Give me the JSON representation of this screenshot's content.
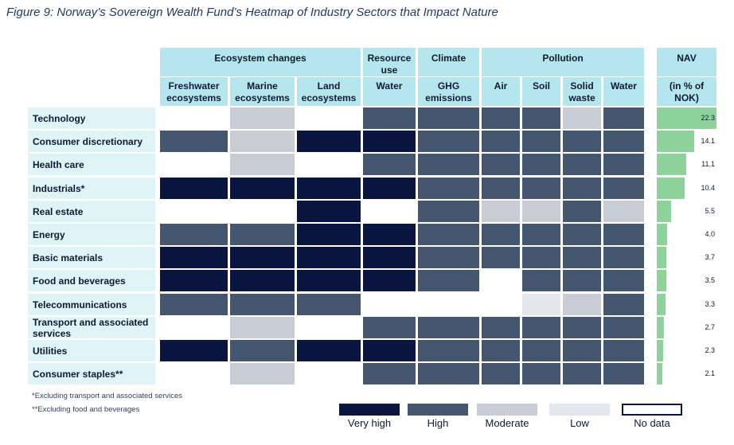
{
  "caption": "Figure 9: Norway’s Sovereign Wealth Fund’s Heatmap of Industry Sectors that Impact Nature",
  "headers": {
    "groups": {
      "ecosystem": "Ecosystem changes",
      "resource": "Resource use",
      "climate": "Climate",
      "pollution": "Pollution",
      "nav": "NAV"
    },
    "columns": {
      "freshwater": "Freshwater ecosystems",
      "marine": "Marine ecosystems",
      "land": "Land ecosystems",
      "water_use": "Water",
      "ghg": "GHG emissions",
      "air": "Air",
      "soil": "Soil",
      "solid_waste": "Solid waste",
      "water_pollution": "Water",
      "nav_unit": "(in % of NOK)"
    }
  },
  "colors": {
    "very_high": "#0b1640",
    "high": "#44576f",
    "moderate": "#c8ccd4",
    "low": "#e3e6ea",
    "no_data": "#ffffff",
    "nav_bar": "#8ed39c"
  },
  "chart_data": {
    "type": "heatmap",
    "title": "Figure 9: Norway’s Sovereign Wealth Fund’s Heatmap of Industry Sectors that Impact Nature",
    "columns": [
      "Freshwater ecosystems",
      "Marine ecosystems",
      "Land ecosystems",
      "Water (Resource use)",
      "GHG emissions",
      "Air",
      "Soil",
      "Solid waste",
      "Water (Pollution)"
    ],
    "levels": [
      "Very high",
      "High",
      "Moderate",
      "Low",
      "No data"
    ],
    "sectors": [
      {
        "name": "Technology",
        "nav": "22.3",
        "nav_value": 22.3,
        "ratings": [
          "No data",
          "Moderate",
          "No data",
          "High",
          "High",
          "High",
          "High",
          "Moderate",
          "High"
        ]
      },
      {
        "name": "Consumer discretionary",
        "nav": "14.1",
        "nav_value": 14.1,
        "ratings": [
          "High",
          "Moderate",
          "Very high",
          "Very high",
          "High",
          "High",
          "High",
          "High",
          "High"
        ]
      },
      {
        "name": "Health care",
        "nav": "11.1",
        "nav_value": 11.1,
        "ratings": [
          "No data",
          "Moderate",
          "No data",
          "High",
          "High",
          "High",
          "High",
          "High",
          "High"
        ]
      },
      {
        "name": "Industrials*",
        "nav": "10.4",
        "nav_value": 10.4,
        "ratings": [
          "Very high",
          "Very high",
          "Very high",
          "Very high",
          "High",
          "High",
          "High",
          "High",
          "High"
        ]
      },
      {
        "name": "Real estate",
        "nav": "5.5",
        "nav_value": 5.5,
        "ratings": [
          "No data",
          "No data",
          "Very high",
          "No data",
          "High",
          "Moderate",
          "Moderate",
          "High",
          "Moderate"
        ]
      },
      {
        "name": "Energy",
        "nav": "4.0",
        "nav_value": 4.0,
        "ratings": [
          "High",
          "High",
          "Very high",
          "Very high",
          "High",
          "High",
          "High",
          "High",
          "High"
        ]
      },
      {
        "name": "Basic materials",
        "nav": "3.7",
        "nav_value": 3.7,
        "ratings": [
          "Very high",
          "Very high",
          "Very high",
          "Very high",
          "High",
          "High",
          "High",
          "High",
          "High"
        ]
      },
      {
        "name": "Food and beverages",
        "nav": "3.5",
        "nav_value": 3.5,
        "ratings": [
          "Very high",
          "Very high",
          "Very high",
          "Very high",
          "High",
          "No data",
          "High",
          "High",
          "High"
        ]
      },
      {
        "name": "Telecommunications",
        "nav": "3.3",
        "nav_value": 3.3,
        "ratings": [
          "High",
          "High",
          "High",
          "No data",
          "No data",
          "No data",
          "Low",
          "Moderate",
          "High"
        ]
      },
      {
        "name": "Transport and associated services",
        "nav": "2.7",
        "nav_value": 2.7,
        "ratings": [
          "No data",
          "Moderate",
          "No data",
          "High",
          "High",
          "High",
          "High",
          "High",
          "High"
        ]
      },
      {
        "name": "Utilities",
        "nav": "2.3",
        "nav_value": 2.3,
        "ratings": [
          "Very high",
          "High",
          "Very high",
          "Very high",
          "High",
          "High",
          "High",
          "High",
          "High"
        ]
      },
      {
        "name": "Consumer staples**",
        "nav": "2.1",
        "nav_value": 2.1,
        "ratings": [
          "No data",
          "Moderate",
          "No data",
          "High",
          "High",
          "High",
          "High",
          "High",
          "High"
        ]
      }
    ],
    "nav_max": 22.3
  },
  "footnotes": {
    "one": "*Excluding transport and associated services",
    "two": "**Excluding food and beverages"
  },
  "legend": {
    "very_high": "Very high",
    "high": "High",
    "moderate": "Moderate",
    "low": "Low",
    "no_data": "No data"
  }
}
